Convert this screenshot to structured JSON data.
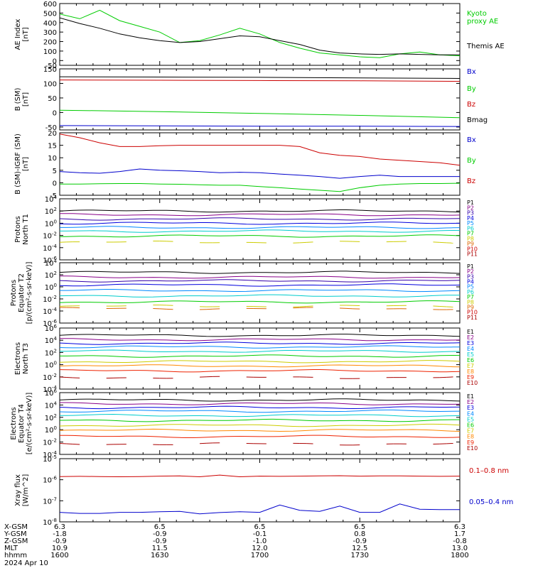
{
  "date_label": "2024 Apr 10",
  "chart_data": [
    {
      "type": "line",
      "ylabel": [
        "AE Index",
        "[nT]"
      ],
      "ylim": [
        -50,
        600
      ],
      "yticks": [
        "600",
        "500",
        "400",
        "300",
        "200",
        "100",
        "0",
        "-50"
      ],
      "x": [
        0,
        0.05,
        0.1,
        0.15,
        0.2,
        0.25,
        0.3,
        0.35,
        0.4,
        0.45,
        0.5,
        0.55,
        0.6,
        0.65,
        0.7,
        0.75,
        0.8,
        0.85,
        0.9,
        0.95,
        1
      ],
      "series": [
        {
          "name": "Kyoto proxy AE",
          "color": "#00cc00",
          "values": [
            490,
            440,
            530,
            420,
            360,
            300,
            190,
            210,
            270,
            340,
            280,
            190,
            130,
            80,
            60,
            40,
            30,
            70,
            90,
            60,
            50
          ]
        },
        {
          "name": "Themis AE",
          "color": "#000000",
          "values": [
            450,
            390,
            340,
            280,
            240,
            210,
            190,
            200,
            230,
            260,
            250,
            210,
            170,
            110,
            80,
            70,
            65,
            70,
            65,
            60,
            60
          ]
        }
      ]
    },
    {
      "type": "line",
      "ylabel": [
        "B (SM)",
        "[nT]"
      ],
      "ylim": [
        -60,
        150
      ],
      "yticks": [
        "150",
        "100",
        "50",
        "0",
        "-50"
      ],
      "x": [
        0,
        0.25,
        0.5,
        0.75,
        1
      ],
      "series": [
        {
          "name": "Bx",
          "color": "#0000cc",
          "values": [
            -45,
            -46,
            -47,
            -47,
            -48
          ]
        },
        {
          "name": "By",
          "color": "#00cc00",
          "values": [
            8,
            3,
            -3,
            -10,
            -18
          ]
        },
        {
          "name": "Bz",
          "color": "#cc0000",
          "values": [
            112,
            111,
            110,
            109,
            107
          ]
        },
        {
          "name": "Bmag",
          "color": "#000000",
          "values": [
            123,
            122,
            121,
            119,
            117
          ]
        }
      ]
    },
    {
      "type": "line",
      "ylabel": [
        "B (SM)-IGRF (SM)",
        "[nT]"
      ],
      "ylim": [
        -5,
        20
      ],
      "yticks": [
        "20",
        "15",
        "10",
        "5",
        "0",
        "-5"
      ],
      "x": [
        0,
        0.05,
        0.1,
        0.15,
        0.2,
        0.25,
        0.3,
        0.35,
        0.4,
        0.45,
        0.5,
        0.55,
        0.6,
        0.65,
        0.7,
        0.75,
        0.8,
        0.85,
        0.9,
        0.95,
        1
      ],
      "series": [
        {
          "name": "Bx",
          "color": "#0000cc",
          "values": [
            4.5,
            4,
            3.8,
            4.5,
            5.5,
            5,
            4.8,
            4.5,
            4,
            4.2,
            4,
            3.5,
            3,
            2.5,
            1.8,
            2.5,
            3,
            2.5,
            2.5,
            2.5,
            2.5
          ]
        },
        {
          "name": "By",
          "color": "#00cc00",
          "values": [
            -0.5,
            -0.5,
            -0.4,
            -0.3,
            -0.3,
            -0.5,
            -0.6,
            -0.8,
            -1,
            -1,
            -1.5,
            -2,
            -2.5,
            -3,
            -3.5,
            -2,
            -1,
            -0.5,
            -0.3,
            -0.3,
            -0.2
          ]
        },
        {
          "name": "Bz",
          "color": "#cc0000",
          "values": [
            19.5,
            18,
            16,
            14.5,
            14.5,
            14.8,
            15,
            15,
            15,
            15,
            15,
            15,
            14.5,
            12,
            11,
            10.5,
            9.5,
            9,
            8.5,
            8,
            7
          ]
        }
      ]
    },
    {
      "type": "line",
      "log": true,
      "ylabel": [
        "Protons",
        "North T1"
      ],
      "ylim": [
        -6,
        4
      ],
      "yticks": [
        "10^4",
        "10^2",
        "10^0",
        "10^-2",
        "10^-4",
        "10^-6"
      ],
      "legend": [
        "P1",
        "P2",
        "P3",
        "P4",
        "P5",
        "P6",
        "P7",
        "P8",
        "P9",
        "P10",
        "P11"
      ],
      "series": [
        {
          "name": "P1",
          "color": "#000000",
          "level": 2.0
        },
        {
          "name": "P2",
          "color": "#880088",
          "level": 1.4
        },
        {
          "name": "P3",
          "color": "#3300aa",
          "level": 0.7
        },
        {
          "name": "P4",
          "color": "#0000dd",
          "level": 0.0
        },
        {
          "name": "P5",
          "color": "#0088ff",
          "level": -0.7
        },
        {
          "name": "P6",
          "color": "#00cccc",
          "level": -1.3
        },
        {
          "name": "P7",
          "color": "#00cc00",
          "level": -2.1
        },
        {
          "name": "P8",
          "color": "#cccc00",
          "level": -3.1,
          "gappy": true
        }
      ]
    },
    {
      "type": "line",
      "log": true,
      "ylabel": [
        "Protons",
        "Equator T2",
        "[p/(cm²-s-sr-keV)]"
      ],
      "ylim": [
        -6,
        4
      ],
      "yticks": [
        "10^4",
        "10^2",
        "10^0",
        "10^-2",
        "10^-4",
        "10^-6"
      ],
      "legend": [
        "P1",
        "P2",
        "P3",
        "P4",
        "P5",
        "P6",
        "P7",
        "P8",
        "P9",
        "P10",
        "P11"
      ],
      "series": [
        {
          "name": "P1",
          "color": "#000000",
          "level": 2.4
        },
        {
          "name": "P2",
          "color": "#880088",
          "level": 1.6
        },
        {
          "name": "P3",
          "color": "#3300aa",
          "level": 1.0
        },
        {
          "name": "P4",
          "color": "#0000dd",
          "level": 0.3
        },
        {
          "name": "P5",
          "color": "#0088ff",
          "level": -0.6
        },
        {
          "name": "P6",
          "color": "#00cccc",
          "level": -1.5
        },
        {
          "name": "P7",
          "color": "#00cc00",
          "level": -2.5
        },
        {
          "name": "P8",
          "color": "#cccc00",
          "level": -3.2,
          "gappy": true
        },
        {
          "name": "P9",
          "color": "#dd6600",
          "level": -3.6,
          "gappy": true
        }
      ]
    },
    {
      "type": "line",
      "log": true,
      "ylabel": [
        "Electrons",
        "North T3"
      ],
      "ylim": [
        -4,
        6
      ],
      "yticks": [
        "10^6",
        "10^4",
        "10^2",
        "10^0",
        "10^-2",
        "10^-4"
      ],
      "legend": [
        "E1",
        "E2",
        "E3",
        "E4",
        "E5",
        "E6",
        "E7",
        "E8",
        "E9",
        "E10"
      ],
      "series": [
        {
          "name": "E1",
          "color": "#000000",
          "level": 4.8
        },
        {
          "name": "E2",
          "color": "#880088",
          "level": 4.1
        },
        {
          "name": "E3",
          "color": "#0000dd",
          "level": 3.5
        },
        {
          "name": "E4",
          "color": "#0088ff",
          "level": 2.9
        },
        {
          "name": "E5",
          "color": "#00cccc",
          "level": 2.2
        },
        {
          "name": "E6",
          "color": "#00cc00",
          "level": 1.4
        },
        {
          "name": "E7",
          "color": "#cccc00",
          "level": 0.5
        },
        {
          "name": "E8",
          "color": "#ff8800",
          "level": -0.2
        },
        {
          "name": "E9",
          "color": "#ee2200",
          "level": -1.0
        },
        {
          "name": "E10",
          "color": "#aa0000",
          "level": -2.1,
          "gappy": true
        }
      ]
    },
    {
      "type": "line",
      "log": true,
      "ylabel": [
        "Electrons",
        "Equator T4",
        "[e/(cm²-s-sr-keV)]"
      ],
      "ylim": [
        -4,
        6
      ],
      "yticks": [
        "10^6",
        "10^4",
        "10^2",
        "10^0",
        "10^-2",
        "10^-4"
      ],
      "legend": [
        "E1",
        "E2",
        "E3",
        "E4",
        "E5",
        "E6",
        "E7",
        "E8",
        "E9",
        "E10"
      ],
      "series": [
        {
          "name": "E1",
          "color": "#000000",
          "level": 4.8
        },
        {
          "name": "E2",
          "color": "#880088",
          "level": 4.2
        },
        {
          "name": "E3",
          "color": "#0000dd",
          "level": 3.6
        },
        {
          "name": "E4",
          "color": "#0088ff",
          "level": 3.0
        },
        {
          "name": "E5",
          "color": "#00cccc",
          "level": 2.3
        },
        {
          "name": "E6",
          "color": "#00cc00",
          "level": 1.5
        },
        {
          "name": "E7",
          "color": "#cccc00",
          "level": 0.7
        },
        {
          "name": "E8",
          "color": "#ff8800",
          "level": -0.1
        },
        {
          "name": "E9",
          "color": "#ee2200",
          "level": -1.1
        },
        {
          "name": "E10",
          "color": "#aa0000",
          "level": -2.3,
          "gappy": true
        }
      ]
    },
    {
      "type": "line",
      "log": true,
      "ylabel": [
        "Xray flux",
        "[W/m^2]"
      ],
      "ylim": [
        -8,
        -5
      ],
      "yticks": [
        "10^-5",
        "10^-6",
        "10^-7",
        "10^-8"
      ],
      "x": [
        0,
        0.05,
        0.1,
        0.15,
        0.2,
        0.25,
        0.3,
        0.35,
        0.4,
        0.45,
        0.5,
        0.55,
        0.6,
        0.65,
        0.7,
        0.75,
        0.8,
        0.85,
        0.9,
        0.95,
        1
      ],
      "series": [
        {
          "name": "0.1-0.8 nm",
          "color": "#cc0000",
          "values": [
            -5.85,
            -5.84,
            -5.85,
            -5.86,
            -5.85,
            -5.83,
            -5.82,
            -5.86,
            -5.78,
            -5.86,
            -5.83,
            -5.84,
            -5.83,
            -5.82,
            -5.81,
            -5.83,
            -5.82,
            -5.82,
            -5.83,
            -5.84,
            -5.83
          ]
        },
        {
          "name": "0.05-0.4 nm",
          "color": "#0000cc",
          "values": [
            -7.55,
            -7.6,
            -7.6,
            -7.55,
            -7.55,
            -7.52,
            -7.5,
            -7.62,
            -7.56,
            -7.52,
            -7.55,
            -7.2,
            -7.45,
            -7.5,
            -7.25,
            -7.55,
            -7.55,
            -7.15,
            -7.4,
            -7.42,
            -7.42
          ]
        }
      ]
    }
  ],
  "x_axis": {
    "rows": [
      {
        "label": "X-GSM",
        "values": [
          "6.3",
          "6.5",
          "6.5",
          "6.5",
          "6.3"
        ]
      },
      {
        "label": "Y-GSM",
        "values": [
          "-1.8",
          "-0.9",
          "-0.1",
          "0.8",
          "1.7"
        ]
      },
      {
        "label": "Z-GSM",
        "values": [
          "-0.9",
          "-0.9",
          "-1.0",
          "-0.9",
          "-0.8"
        ]
      },
      {
        "label": "MLT",
        "values": [
          "10.9",
          "11.5",
          "12.0",
          "12.5",
          "13.0"
        ]
      },
      {
        "label": "hhmm",
        "values": [
          "1600",
          "1630",
          "1700",
          "1730",
          "1800"
        ]
      }
    ]
  }
}
